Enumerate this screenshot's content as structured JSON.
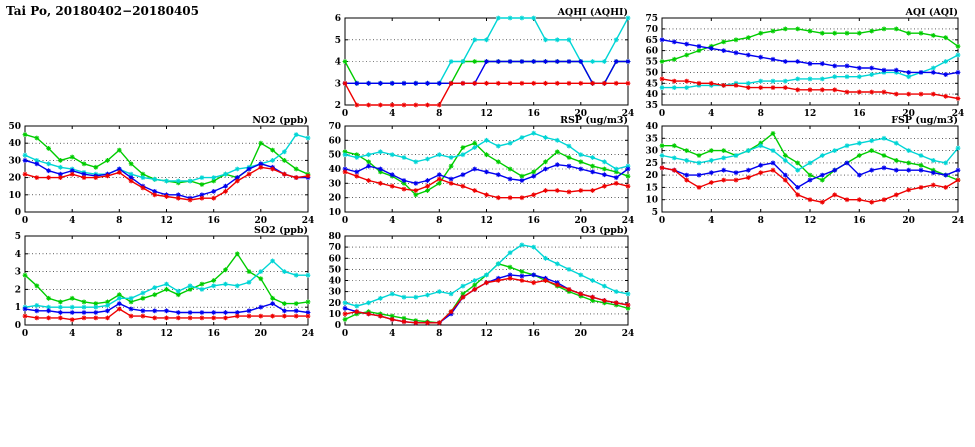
{
  "page": {
    "title": "Tai Po, 20180402−20180405"
  },
  "colors": {
    "green": "#00cc00",
    "cyan": "#00d5d5",
    "blue": "#0000ee",
    "red": "#ee0000"
  },
  "chart_data": [
    {
      "key": "aqhi",
      "type": "line",
      "title": "AQHI (AQHI)",
      "xlabel": "",
      "ylabel": "",
      "xlim": [
        0,
        24
      ],
      "xticks": [
        0,
        4,
        8,
        12,
        16,
        20,
        24
      ],
      "ylim": [
        2,
        6
      ],
      "yticks": [
        2,
        3,
        4,
        5,
        6
      ],
      "x": [
        0,
        1,
        2,
        3,
        4,
        5,
        6,
        7,
        8,
        9,
        10,
        11,
        12,
        13,
        14,
        15,
        16,
        17,
        18,
        19,
        20,
        21,
        22,
        23,
        24
      ],
      "series": [
        {
          "name": "green",
          "color": "#00cc00",
          "values": [
            4,
            3,
            3,
            3,
            3,
            3,
            3,
            3,
            3,
            3,
            4,
            4,
            4,
            4,
            4,
            4,
            4,
            4,
            4,
            4,
            4,
            3,
            3,
            4,
            4
          ]
        },
        {
          "name": "cyan",
          "color": "#00d5d5",
          "values": [
            3,
            3,
            3,
            3,
            3,
            3,
            3,
            3,
            3,
            4,
            4,
            5,
            5,
            6,
            6,
            6,
            6,
            5,
            5,
            5,
            4,
            4,
            4,
            5,
            6
          ]
        },
        {
          "name": "blue",
          "color": "#0000ee",
          "values": [
            3,
            3,
            3,
            3,
            3,
            3,
            3,
            3,
            3,
            3,
            3,
            3,
            4,
            4,
            4,
            4,
            4,
            4,
            4,
            4,
            4,
            3,
            3,
            4,
            4
          ]
        },
        {
          "name": "red",
          "color": "#ee0000",
          "values": [
            3,
            2,
            2,
            2,
            2,
            2,
            2,
            2,
            2,
            3,
            3,
            3,
            3,
            3,
            3,
            3,
            3,
            3,
            3,
            3,
            3,
            3,
            3,
            3,
            3
          ]
        }
      ]
    },
    {
      "key": "aqi",
      "type": "line",
      "title": "AQI (AQI)",
      "xlabel": "",
      "ylabel": "",
      "xlim": [
        0,
        24
      ],
      "xticks": [
        0,
        4,
        8,
        12,
        16,
        20,
        24
      ],
      "ylim": [
        35,
        75
      ],
      "yticks": [
        35,
        40,
        45,
        50,
        55,
        60,
        65,
        70,
        75
      ],
      "x": [
        0,
        1,
        2,
        3,
        4,
        5,
        6,
        7,
        8,
        9,
        10,
        11,
        12,
        13,
        14,
        15,
        16,
        17,
        18,
        19,
        20,
        21,
        22,
        23,
        24
      ],
      "series": [
        {
          "name": "green",
          "color": "#00cc00",
          "values": [
            55,
            56,
            58,
            60,
            62,
            64,
            65,
            66,
            68,
            69,
            70,
            70,
            69,
            68,
            68,
            68,
            68,
            69,
            70,
            70,
            68,
            68,
            67,
            66,
            62
          ]
        },
        {
          "name": "cyan",
          "color": "#00d5d5",
          "values": [
            43,
            43,
            43,
            44,
            44,
            44,
            45,
            45,
            46,
            46,
            46,
            47,
            47,
            47,
            48,
            48,
            48,
            49,
            50,
            50,
            48,
            50,
            52,
            55,
            58
          ]
        },
        {
          "name": "blue",
          "color": "#0000ee",
          "values": [
            65,
            64,
            63,
            62,
            61,
            60,
            59,
            58,
            57,
            56,
            55,
            55,
            54,
            54,
            53,
            53,
            52,
            52,
            51,
            51,
            50,
            50,
            50,
            49,
            50
          ]
        },
        {
          "name": "red",
          "color": "#ee0000",
          "values": [
            47,
            46,
            46,
            45,
            45,
            44,
            44,
            43,
            43,
            43,
            43,
            42,
            42,
            42,
            42,
            41,
            41,
            41,
            41,
            40,
            40,
            40,
            40,
            39,
            38
          ]
        }
      ]
    },
    {
      "key": "no2",
      "type": "line",
      "title": "NO2 (ppb)",
      "xlabel": "",
      "ylabel": "",
      "xlim": [
        0,
        24
      ],
      "xticks": [
        0,
        4,
        8,
        12,
        16,
        20,
        24
      ],
      "ylim": [
        0,
        50
      ],
      "yticks": [
        0,
        10,
        20,
        30,
        40,
        50
      ],
      "x": [
        0,
        1,
        2,
        3,
        4,
        5,
        6,
        7,
        8,
        9,
        10,
        11,
        12,
        13,
        14,
        15,
        16,
        17,
        18,
        19,
        20,
        21,
        22,
        23,
        24
      ],
      "series": [
        {
          "name": "green",
          "color": "#00cc00",
          "values": [
            45,
            43,
            37,
            30,
            32,
            28,
            26,
            30,
            36,
            28,
            22,
            19,
            18,
            17,
            18,
            16,
            18,
            22,
            20,
            25,
            40,
            36,
            30,
            25,
            22
          ]
        },
        {
          "name": "cyan",
          "color": "#00d5d5",
          "values": [
            33,
            30,
            28,
            26,
            25,
            23,
            22,
            22,
            25,
            22,
            20,
            19,
            18,
            18,
            18,
            20,
            20,
            22,
            25,
            26,
            28,
            30,
            35,
            45,
            43
          ]
        },
        {
          "name": "blue",
          "color": "#0000ee",
          "values": [
            30,
            28,
            24,
            22,
            24,
            22,
            21,
            22,
            25,
            20,
            15,
            12,
            10,
            10,
            8,
            10,
            12,
            15,
            20,
            25,
            28,
            26,
            22,
            20,
            20
          ]
        },
        {
          "name": "red",
          "color": "#ee0000",
          "values": [
            22,
            20,
            20,
            20,
            22,
            20,
            20,
            21,
            23,
            18,
            14,
            10,
            9,
            8,
            7,
            8,
            8,
            12,
            18,
            22,
            26,
            25,
            22,
            20,
            21
          ]
        }
      ]
    },
    {
      "key": "rsp",
      "type": "line",
      "title": "RSP (ug/m3)",
      "xlabel": "",
      "ylabel": "",
      "xlim": [
        0,
        24
      ],
      "xticks": [
        0,
        4,
        8,
        12,
        16,
        20,
        24
      ],
      "ylim": [
        10,
        70
      ],
      "yticks": [
        10,
        20,
        30,
        40,
        50,
        60,
        70
      ],
      "x": [
        0,
        1,
        2,
        3,
        4,
        5,
        6,
        7,
        8,
        9,
        10,
        11,
        12,
        13,
        14,
        15,
        16,
        17,
        18,
        19,
        20,
        21,
        22,
        23,
        24
      ],
      "series": [
        {
          "name": "green",
          "color": "#00cc00",
          "values": [
            52,
            50,
            45,
            38,
            35,
            30,
            22,
            25,
            30,
            42,
            55,
            58,
            50,
            45,
            40,
            35,
            38,
            45,
            52,
            48,
            45,
            42,
            40,
            38,
            35
          ]
        },
        {
          "name": "cyan",
          "color": "#00d5d5",
          "values": [
            50,
            48,
            50,
            52,
            50,
            48,
            45,
            47,
            50,
            48,
            50,
            55,
            60,
            56,
            58,
            62,
            65,
            62,
            60,
            56,
            50,
            48,
            45,
            40,
            42
          ]
        },
        {
          "name": "blue",
          "color": "#0000ee",
          "values": [
            40,
            38,
            42,
            40,
            36,
            32,
            30,
            32,
            36,
            33,
            36,
            40,
            38,
            36,
            33,
            32,
            35,
            40,
            43,
            42,
            40,
            38,
            36,
            34,
            40
          ]
        },
        {
          "name": "red",
          "color": "#ee0000",
          "values": [
            38,
            35,
            32,
            30,
            28,
            26,
            25,
            28,
            33,
            30,
            28,
            25,
            22,
            20,
            20,
            20,
            22,
            25,
            25,
            24,
            25,
            25,
            28,
            30,
            28
          ]
        }
      ]
    },
    {
      "key": "fsp",
      "type": "line",
      "title": "FSP (ug/m3)",
      "xlabel": "",
      "ylabel": "",
      "xlim": [
        0,
        24
      ],
      "xticks": [
        0,
        4,
        8,
        12,
        16,
        20,
        24
      ],
      "ylim": [
        5,
        40
      ],
      "yticks": [
        5,
        10,
        15,
        20,
        25,
        30,
        35,
        40
      ],
      "x": [
        0,
        1,
        2,
        3,
        4,
        5,
        6,
        7,
        8,
        9,
        10,
        11,
        12,
        13,
        14,
        15,
        16,
        17,
        18,
        19,
        20,
        21,
        22,
        23,
        24
      ],
      "series": [
        {
          "name": "green",
          "color": "#00cc00",
          "values": [
            32,
            32,
            30,
            28,
            30,
            30,
            28,
            30,
            33,
            37,
            28,
            25,
            20,
            18,
            22,
            25,
            28,
            30,
            28,
            26,
            25,
            24,
            22,
            20,
            18
          ]
        },
        {
          "name": "cyan",
          "color": "#00d5d5",
          "values": [
            28,
            27,
            26,
            25,
            26,
            27,
            28,
            30,
            32,
            30,
            26,
            22,
            25,
            28,
            30,
            32,
            33,
            34,
            35,
            33,
            30,
            28,
            26,
            25,
            31
          ]
        },
        {
          "name": "blue",
          "color": "#0000ee",
          "values": [
            23,
            22,
            20,
            20,
            21,
            22,
            21,
            22,
            24,
            25,
            20,
            15,
            18,
            20,
            22,
            25,
            20,
            22,
            23,
            22,
            22,
            22,
            21,
            20,
            22
          ]
        },
        {
          "name": "red",
          "color": "#ee0000",
          "values": [
            23,
            22,
            18,
            15,
            17,
            18,
            18,
            19,
            21,
            22,
            18,
            12,
            10,
            9,
            12,
            10,
            10,
            9,
            10,
            12,
            14,
            15,
            16,
            15,
            18
          ]
        }
      ]
    },
    {
      "key": "so2",
      "type": "line",
      "title": "SO2 (ppb)",
      "xlabel": "",
      "ylabel": "",
      "xlim": [
        0,
        24
      ],
      "xticks": [
        0,
        4,
        8,
        12,
        16,
        20,
        24
      ],
      "ylim": [
        0,
        5
      ],
      "yticks": [
        0,
        1,
        2,
        3,
        4,
        5
      ],
      "x": [
        0,
        1,
        2,
        3,
        4,
        5,
        6,
        7,
        8,
        9,
        10,
        11,
        12,
        13,
        14,
        15,
        16,
        17,
        18,
        19,
        20,
        21,
        22,
        23,
        24
      ],
      "series": [
        {
          "name": "green",
          "color": "#00cc00",
          "values": [
            2.8,
            2.2,
            1.5,
            1.3,
            1.5,
            1.3,
            1.2,
            1.3,
            1.7,
            1.3,
            1.5,
            1.7,
            2.0,
            1.7,
            2.0,
            2.3,
            2.5,
            3.1,
            4.0,
            3.0,
            2.6,
            1.5,
            1.2,
            1.2,
            1.3
          ]
        },
        {
          "name": "cyan",
          "color": "#00d5d5",
          "values": [
            1.0,
            1.1,
            1.0,
            1.0,
            1.0,
            1.0,
            1.0,
            1.1,
            1.5,
            1.5,
            1.8,
            2.1,
            2.3,
            1.9,
            2.2,
            2.0,
            2.2,
            2.3,
            2.2,
            2.4,
            3.0,
            3.6,
            3.0,
            2.8,
            2.8
          ]
        },
        {
          "name": "blue",
          "color": "#0000ee",
          "values": [
            0.9,
            0.8,
            0.8,
            0.7,
            0.7,
            0.7,
            0.7,
            0.8,
            1.2,
            0.9,
            0.8,
            0.8,
            0.8,
            0.7,
            0.7,
            0.7,
            0.7,
            0.7,
            0.7,
            0.8,
            1.0,
            1.2,
            0.8,
            0.8,
            0.7
          ]
        },
        {
          "name": "red",
          "color": "#ee0000",
          "values": [
            0.5,
            0.4,
            0.4,
            0.4,
            0.3,
            0.4,
            0.4,
            0.4,
            0.9,
            0.5,
            0.5,
            0.4,
            0.4,
            0.4,
            0.4,
            0.4,
            0.4,
            0.4,
            0.5,
            0.5,
            0.5,
            0.5,
            0.5,
            0.5,
            0.5
          ]
        }
      ]
    },
    {
      "key": "o3",
      "type": "line",
      "title": "O3 (ppb)",
      "xlabel": "",
      "ylabel": "",
      "xlim": [
        0,
        24
      ],
      "xticks": [
        0,
        4,
        8,
        12,
        16,
        20,
        24
      ],
      "ylim": [
        0,
        80
      ],
      "yticks": [
        0,
        10,
        20,
        30,
        40,
        50,
        60,
        70,
        80
      ],
      "x": [
        0,
        1,
        2,
        3,
        4,
        5,
        6,
        7,
        8,
        9,
        10,
        11,
        12,
        13,
        14,
        15,
        16,
        17,
        18,
        19,
        20,
        21,
        22,
        23,
        24
      ],
      "series": [
        {
          "name": "green",
          "color": "#00cc00",
          "values": [
            5,
            10,
            12,
            10,
            8,
            6,
            4,
            3,
            2,
            12,
            28,
            36,
            45,
            55,
            52,
            48,
            45,
            40,
            35,
            30,
            26,
            22,
            20,
            18,
            15
          ]
        },
        {
          "name": "cyan",
          "color": "#00d5d5",
          "values": [
            20,
            17,
            20,
            24,
            28,
            25,
            25,
            27,
            30,
            28,
            35,
            40,
            45,
            55,
            65,
            72,
            70,
            60,
            55,
            50,
            45,
            40,
            35,
            30,
            28
          ]
        },
        {
          "name": "blue",
          "color": "#0000ee",
          "values": [
            15,
            12,
            10,
            8,
            5,
            3,
            2,
            2,
            2,
            10,
            25,
            32,
            38,
            42,
            45,
            44,
            45,
            42,
            38,
            32,
            28,
            25,
            22,
            20,
            18
          ]
        },
        {
          "name": "red",
          "color": "#ee0000",
          "values": [
            10,
            12,
            10,
            8,
            5,
            3,
            2,
            2,
            2,
            12,
            25,
            32,
            38,
            40,
            42,
            40,
            38,
            40,
            36,
            32,
            28,
            25,
            22,
            20,
            18
          ]
        }
      ]
    }
  ]
}
